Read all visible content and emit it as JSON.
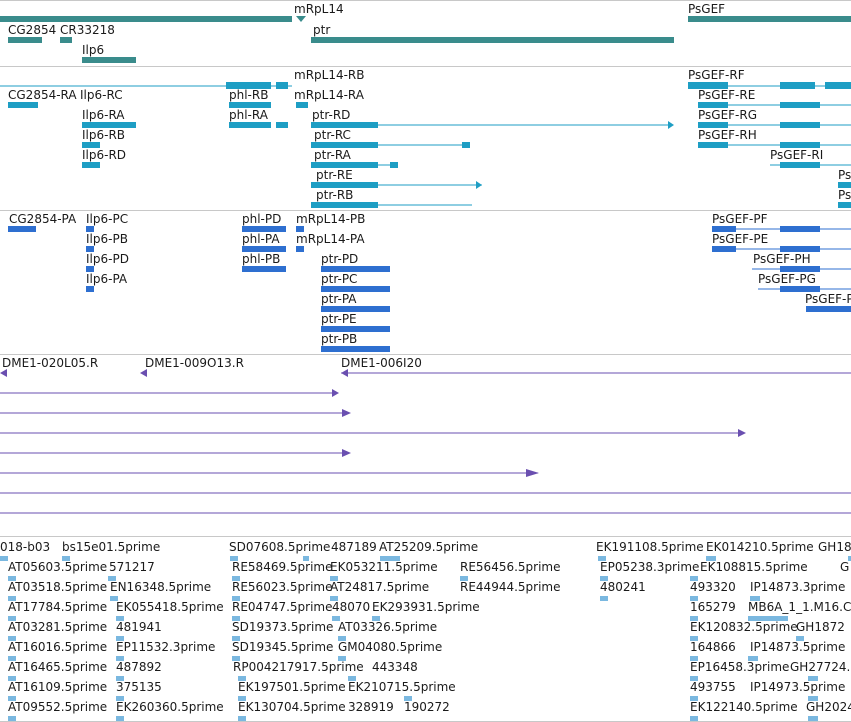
{
  "colors": {
    "gene": "#3a8c8c",
    "transcript": "#1e9ec4",
    "protein": "#2e6fd0",
    "clone": "#6a4fb0",
    "est": "#7ab8e0",
    "separator": "#c8c8c8"
  },
  "tracks": {
    "genes": {
      "labels": [
        "mRpL14",
        "PsGEF",
        "CG2854",
        "CR33218",
        "ptr",
        "Ilp6"
      ]
    },
    "transcripts": {
      "labels": [
        "mRpL14-RB",
        "PsGEF-RF",
        "CG2854-RA",
        "Ilp6-RC",
        "phl-RB",
        "mRpL14-RA",
        "PsGEF-RE",
        "Ilp6-RA",
        "phl-RA",
        "ptr-RD",
        "PsGEF-RG",
        "Ilp6-RB",
        "ptr-RC",
        "PsGEF-RH",
        "Ilp6-RD",
        "ptr-RA",
        "PsGEF-RI",
        "ptr-RE",
        "Ps",
        "ptr-RB",
        "Ps"
      ]
    },
    "proteins": {
      "labels": [
        "CG2854-PA",
        "Ilp6-PC",
        "phl-PD",
        "mRpL14-PB",
        "PsGEF-PF",
        "Ilp6-PB",
        "phl-PA",
        "mRpL14-PA",
        "PsGEF-PE",
        "Ilp6-PD",
        "phl-PB",
        "ptr-PD",
        "PsGEF-PH",
        "Ilp6-PA",
        "ptr-PC",
        "PsGEF-PG",
        "ptr-PA",
        "PsGEF-P",
        "ptr-PE",
        "ptr-PB"
      ]
    },
    "clones": {
      "labels": [
        "DME1-020L05.R",
        "DME1-009O13.R",
        "DME1-006I20"
      ]
    },
    "ests": {
      "labels": [
        "018-b03",
        "bs15e01.5prime",
        "SD07608.5prime",
        "487189",
        "AT25209.5prime",
        "EK191108.5prime",
        "EK014210.5prime",
        "GH18",
        "AT05603.5prime",
        "571217",
        "RE58469.5prime",
        "EK053211.5prime",
        "RE56456.5prime",
        "EP05238.3prime",
        "EK108815.5prime",
        "G",
        "AT03518.5prime",
        "EN16348.5prime",
        "RE56023.5prime",
        "AT24817.5prime",
        "RE44944.5prime",
        "480241",
        "493320",
        "IP14873.3prime",
        "AT17784.5prime",
        "EK055418.5prime",
        "RE04747.5prime",
        "48070",
        "EK293931.5prime",
        "165279",
        "MB6A_1_1.M16.C",
        "AT03281.5prime",
        "481941",
        "SD19373.5prime",
        "AT03326.5prime",
        "EK120832.5prime",
        "GH1872",
        "AT16016.5prime",
        "EP11532.3prime",
        "SD19345.5prime",
        "GM04080.5prime",
        "164866",
        "IP14873.5prime",
        "AT16465.5prime",
        "487892",
        "RP004217917.5prime",
        "443348",
        "EP16458.3prime",
        "GH27724.",
        "AT16109.5prime",
        "375135",
        "EK197501.5prime",
        "EK210715.5prime",
        "493755",
        "IP14973.5prime",
        "AT09552.5prime",
        "EK260360.5prime",
        "EK130704.5prime",
        "328919",
        "190272",
        "EK122140.5prime",
        "GH2024"
      ]
    }
  }
}
